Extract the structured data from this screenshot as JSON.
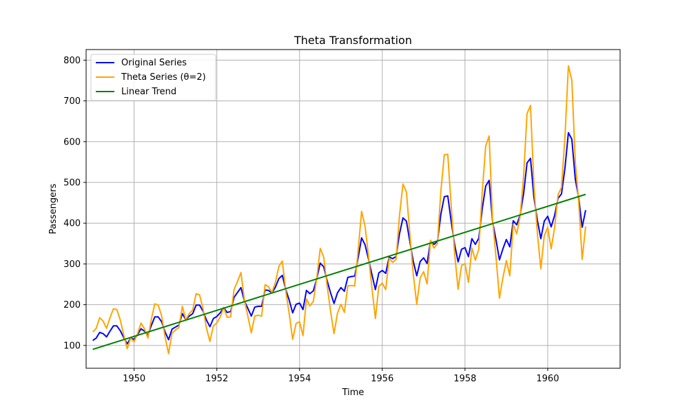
{
  "chart_data": {
    "type": "line",
    "title": "Theta Transformation",
    "xlabel": "Time",
    "ylabel": "Passengers",
    "xlim": [
      1948.84,
      1961.75
    ],
    "ylim": [
      44,
      826
    ],
    "xticks": [
      1950,
      1952,
      1954,
      1956,
      1958,
      1960
    ],
    "yticks": [
      100,
      200,
      300,
      400,
      500,
      600,
      700,
      800
    ],
    "grid": true,
    "legend_position": "top-left",
    "x_start": 1949.0,
    "x_step": 0.0833333,
    "series": [
      {
        "name": "Original Series",
        "color": "#0000ff",
        "values": [
          112,
          118,
          132,
          129,
          121,
          135,
          148,
          148,
          136,
          119,
          104,
          118,
          115,
          126,
          141,
          135,
          125,
          149,
          170,
          170,
          158,
          133,
          114,
          140,
          145,
          150,
          178,
          163,
          172,
          178,
          199,
          199,
          184,
          162,
          146,
          166,
          171,
          180,
          193,
          181,
          183,
          218,
          230,
          242,
          209,
          191,
          172,
          194,
          196,
          196,
          236,
          235,
          229,
          243,
          264,
          272,
          237,
          211,
          180,
          201,
          204,
          188,
          235,
          227,
          234,
          264,
          302,
          293,
          259,
          229,
          203,
          229,
          242,
          233,
          267,
          269,
          270,
          315,
          364,
          347,
          312,
          274,
          237,
          278,
          284,
          277,
          317,
          313,
          318,
          374,
          413,
          405,
          355,
          306,
          271,
          306,
          315,
          301,
          356,
          348,
          355,
          422,
          465,
          467,
          404,
          347,
          305,
          336,
          340,
          318,
          362,
          348,
          363,
          435,
          491,
          505,
          404,
          359,
          310,
          337,
          360,
          342,
          406,
          396,
          420,
          472,
          548,
          559,
          463,
          407,
          362,
          405,
          417,
          391,
          419,
          461,
          472,
          535,
          622,
          606,
          508,
          461,
          390,
          432
        ]
      },
      {
        "name": "Theta Series (θ=2)",
        "color": "#ffa500",
        "values": [
          133,
          142,
          168,
          160,
          142,
          168,
          190,
          188,
          162,
          125,
          92,
          118,
          109,
          129,
          155,
          141,
          118,
          164,
          202,
          199,
          172,
          120,
          80,
          130,
          138,
          144,
          196,
          163,
          178,
          187,
          227,
          224,
          190,
          142,
          110,
          148,
          155,
          170,
          193,
          169,
          170,
          237,
          257,
          279,
          211,
          172,
          131,
          172,
          174,
          172,
          249,
          244,
          230,
          255,
          294,
          307,
          234,
          178,
          115,
          154,
          158,
          124,
          214,
          197,
          208,
          265,
          338,
          317,
          247,
          184,
          129,
          179,
          201,
          181,
          246,
          247,
          246,
          333,
          429,
          393,
          320,
          241,
          166,
          245,
          253,
          237,
          314,
          304,
          311,
          419,
          496,
          477,
          374,
          274,
          201,
          266,
          281,
          251,
          358,
          339,
          350,
          479,
          568,
          569,
          442,
          325,
          238,
          296,
          301,
          255,
          339,
          309,
          336,
          476,
          589,
          614,
          409,
          317,
          216,
          266,
          308,
          271,
          397,
          374,
          417,
          515,
          669,
          689,
          492,
          375,
          288,
          369,
          390,
          337,
          389,
          470,
          488,
          611,
          786,
          751,
          550,
          451,
          311,
          392
        ]
      },
      {
        "name": "Linear Trend",
        "color": "#008000",
        "trend": [
          90.3,
          470.7
        ]
      }
    ]
  }
}
